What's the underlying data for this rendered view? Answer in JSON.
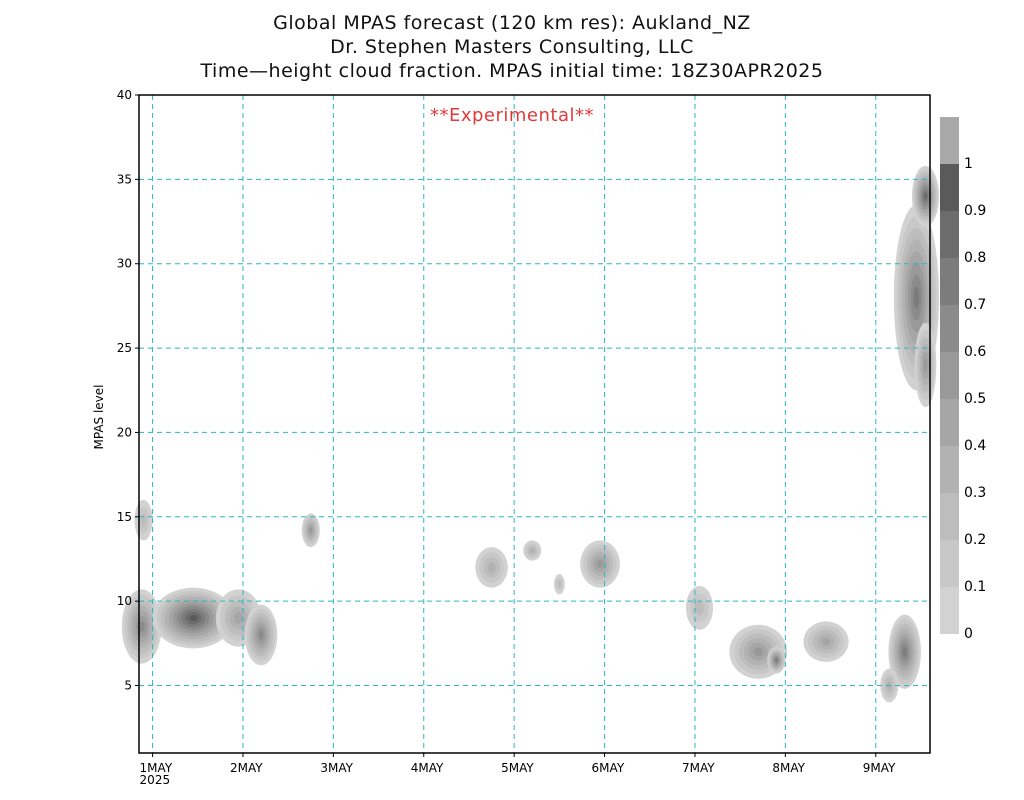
{
  "titles": {
    "line1": "Global MPAS forecast (120 km res): Aukland_NZ",
    "line2": "Dr. Stephen Masters Consulting, LLC",
    "line3": "Time—height cloud fraction.   MPAS initial time: 18Z30APR2025"
  },
  "annotation": "**Experimental**",
  "chart_data": {
    "type": "heatmap",
    "xlabel": "",
    "ylabel": "MPAS level",
    "xlim": [
      0.75,
      9.5
    ],
    "ylim": [
      1,
      40
    ],
    "grid": true,
    "x_ticks": [
      {
        "x": 0.9,
        "label": "1MAY",
        "sub": "2025"
      },
      {
        "x": 1.9,
        "label": "2MAY",
        "sub": ""
      },
      {
        "x": 2.9,
        "label": "3MAY",
        "sub": ""
      },
      {
        "x": 3.9,
        "label": "4MAY",
        "sub": ""
      },
      {
        "x": 4.9,
        "label": "5MAY",
        "sub": ""
      },
      {
        "x": 5.9,
        "label": "6MAY",
        "sub": ""
      },
      {
        "x": 6.9,
        "label": "7MAY",
        "sub": ""
      },
      {
        "x": 7.9,
        "label": "8MAY",
        "sub": ""
      },
      {
        "x": 8.9,
        "label": "9MAY",
        "sub": ""
      }
    ],
    "y_ticks": [
      5,
      10,
      15,
      20,
      25,
      30,
      35,
      40
    ],
    "colorbar": {
      "labels": [
        "0",
        "0.1",
        "0.2",
        "0.3",
        "0.4",
        "0.5",
        "0.6",
        "0.7",
        "0.8",
        "0.9",
        "1"
      ],
      "colors": [
        "#dcdcdc",
        "#d2d2d2",
        "#c8c8c8",
        "#bdbdbd",
        "#b2b2b2",
        "#a6a6a6",
        "#999999",
        "#8b8b8b",
        "#7c7c7c",
        "#6c6c6c",
        "#5a5a5a"
      ]
    },
    "cloud_features": [
      {
        "t": 0.78,
        "lev": 8.5,
        "rt": 0.22,
        "rl": 2.2,
        "value": 0.7
      },
      {
        "t": 1.35,
        "lev": 9.0,
        "rt": 0.45,
        "rl": 1.8,
        "value": 0.95
      },
      {
        "t": 1.85,
        "lev": 9.0,
        "rt": 0.25,
        "rl": 1.7,
        "value": 0.5
      },
      {
        "t": 2.1,
        "lev": 8.0,
        "rt": 0.18,
        "rl": 1.8,
        "value": 0.65
      },
      {
        "t": 0.8,
        "lev": 14.8,
        "rt": 0.1,
        "rl": 1.2,
        "value": 0.3
      },
      {
        "t": 2.65,
        "lev": 14.2,
        "rt": 0.1,
        "rl": 1.0,
        "value": 0.6
      },
      {
        "t": 4.65,
        "lev": 12.0,
        "rt": 0.18,
        "rl": 1.2,
        "value": 0.4
      },
      {
        "t": 5.1,
        "lev": 13.0,
        "rt": 0.1,
        "rl": 0.6,
        "value": 0.35
      },
      {
        "t": 5.4,
        "lev": 11.0,
        "rt": 0.06,
        "rl": 0.6,
        "value": 0.3
      },
      {
        "t": 5.85,
        "lev": 12.2,
        "rt": 0.22,
        "rl": 1.4,
        "value": 0.55
      },
      {
        "t": 6.95,
        "lev": 9.6,
        "rt": 0.15,
        "rl": 1.3,
        "value": 0.3
      },
      {
        "t": 7.6,
        "lev": 7.0,
        "rt": 0.32,
        "rl": 1.6,
        "value": 0.55
      },
      {
        "t": 7.8,
        "lev": 6.5,
        "rt": 0.1,
        "rl": 0.8,
        "value": 0.8
      },
      {
        "t": 8.35,
        "lev": 7.6,
        "rt": 0.25,
        "rl": 1.2,
        "value": 0.5
      },
      {
        "t": 9.22,
        "lev": 7.0,
        "rt": 0.18,
        "rl": 2.2,
        "value": 0.8
      },
      {
        "t": 9.05,
        "lev": 5.0,
        "rt": 0.1,
        "rl": 1.0,
        "value": 0.4
      },
      {
        "t": 9.35,
        "lev": 28.0,
        "rt": 0.25,
        "rl": 5.5,
        "value": 0.75
      },
      {
        "t": 9.45,
        "lev": 34.0,
        "rt": 0.15,
        "rl": 1.8,
        "value": 0.85
      },
      {
        "t": 9.45,
        "lev": 24.0,
        "rt": 0.12,
        "rl": 2.5,
        "value": 0.6
      }
    ]
  }
}
